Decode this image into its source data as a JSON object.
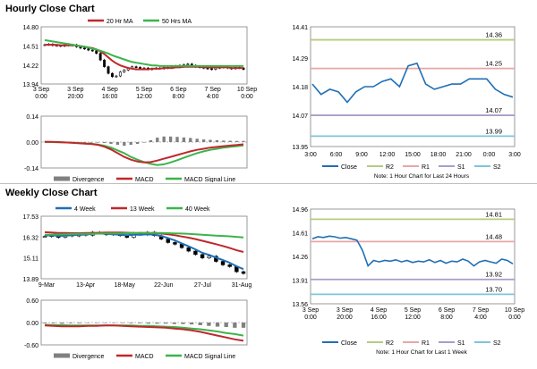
{
  "sections": {
    "hourly_title": "Hourly Close Chart",
    "weekly_title": "Weekly Close Chart"
  },
  "colors": {
    "ma_short": "#c0282c",
    "ma_long": "#3cb44b",
    "line_blue": "#1f6fb5",
    "macd": "#c0282c",
    "signal": "#3cb44b",
    "divergence": "#808080",
    "r2": "#b5cc7e",
    "r1": "#e8a6a6",
    "s1": "#a99cc8",
    "s2": "#7fc4dc",
    "candle": "#000000"
  },
  "chart_data": [
    {
      "id": "hourly-price",
      "type": "candlestick",
      "title": "Hourly Close Chart",
      "legend": [
        "20 Hr MA",
        "50 Hrs MA"
      ],
      "yticks": [
        "14.80",
        "14.51",
        "14.22",
        "13.94"
      ],
      "ylim": [
        13.94,
        14.8
      ],
      "x_labels": [
        [
          "3 Sep",
          "0:00"
        ],
        [
          "3 Sep",
          "20:00"
        ],
        [
          "4 Sep",
          "16:00"
        ],
        [
          "5 Sep",
          "12:00"
        ],
        [
          "6 Sep",
          "8:00"
        ],
        [
          "7 Sep",
          "4:00"
        ],
        [
          "10 Sep",
          "0:00"
        ]
      ],
      "close": [
        14.53,
        14.54,
        14.52,
        14.52,
        14.51,
        14.53,
        14.52,
        14.53,
        14.5,
        14.48,
        14.47,
        14.45,
        14.44,
        14.4,
        14.3,
        14.2,
        14.1,
        14.05,
        14.06,
        14.12,
        14.15,
        14.18,
        14.2,
        14.19,
        14.17,
        14.18,
        14.16,
        14.17,
        14.18,
        14.17,
        14.19,
        14.18,
        14.2,
        14.21,
        14.22,
        14.23,
        14.24,
        14.22,
        14.2,
        14.19,
        14.18,
        14.17,
        14.16,
        14.18,
        14.19,
        14.2,
        14.18,
        14.17,
        14.19,
        14.18,
        14.16
      ],
      "ma_short": [
        14.53,
        14.53,
        14.53,
        14.53,
        14.52,
        14.52,
        14.52,
        14.52,
        14.52,
        14.51,
        14.5,
        14.49,
        14.48,
        14.46,
        14.43,
        14.39,
        14.34,
        14.29,
        14.25,
        14.22,
        14.2,
        14.18,
        14.17,
        14.16,
        14.16,
        14.16,
        14.16,
        14.17,
        14.17,
        14.17,
        14.18,
        14.18,
        14.18,
        14.19,
        14.19,
        14.2,
        14.2,
        14.2,
        14.2,
        14.2,
        14.19,
        14.19,
        14.19,
        14.19,
        14.19,
        14.19,
        14.19,
        14.18,
        14.18,
        14.18,
        14.18
      ],
      "ma_long": [
        14.6,
        14.59,
        14.58,
        14.57,
        14.56,
        14.55,
        14.54,
        14.53,
        14.52,
        14.51,
        14.5,
        14.49,
        14.47,
        14.46,
        14.44,
        14.42,
        14.4,
        14.37,
        14.35,
        14.33,
        14.31,
        14.29,
        14.27,
        14.26,
        14.25,
        14.24,
        14.23,
        14.22,
        14.22,
        14.21,
        14.21,
        14.21,
        14.21,
        14.21,
        14.21,
        14.21,
        14.21,
        14.21,
        14.21,
        14.21,
        14.21,
        14.21,
        14.21,
        14.21,
        14.21,
        14.21,
        14.21,
        14.21,
        14.21,
        14.21,
        14.21
      ]
    },
    {
      "id": "hourly-macd",
      "type": "macd",
      "yticks": [
        "0.14",
        "0.00",
        "-0.14"
      ],
      "ylim": [
        -0.14,
        0.14
      ],
      "legend": [
        "Divergence",
        "MACD",
        "MACD Signal Line"
      ],
      "macd": [
        0.002,
        0.001,
        0.0,
        -0.002,
        -0.004,
        -0.006,
        -0.008,
        -0.01,
        -0.015,
        -0.025,
        -0.04,
        -0.06,
        -0.08,
        -0.095,
        -0.105,
        -0.11,
        -0.108,
        -0.1,
        -0.09,
        -0.08,
        -0.07,
        -0.06,
        -0.05,
        -0.042,
        -0.036,
        -0.03,
        -0.026,
        -0.022,
        -0.019,
        -0.016,
        -0.012
      ],
      "signal": [
        0.0,
        0.0,
        -0.001,
        -0.002,
        -0.003,
        -0.005,
        -0.007,
        -0.009,
        -0.013,
        -0.02,
        -0.03,
        -0.045,
        -0.06,
        -0.08,
        -0.095,
        -0.108,
        -0.118,
        -0.124,
        -0.12,
        -0.11,
        -0.098,
        -0.085,
        -0.072,
        -0.06,
        -0.05,
        -0.042,
        -0.036,
        -0.03,
        -0.026,
        -0.022,
        -0.018
      ],
      "divergence": [
        0.002,
        0.001,
        0.001,
        0.0,
        -0.001,
        -0.001,
        -0.001,
        -0.001,
        -0.002,
        -0.005,
        -0.01,
        -0.015,
        -0.02,
        -0.015,
        -0.01,
        -0.002,
        0.01,
        0.024,
        0.03,
        0.03,
        0.028,
        0.025,
        0.022,
        0.018,
        0.014,
        0.012,
        0.01,
        0.008,
        0.007,
        0.006,
        0.006
      ]
    },
    {
      "id": "hourly-pivot",
      "type": "line",
      "yticks": [
        "14.41",
        "14.29",
        "14.18",
        "14.07",
        "13.95"
      ],
      "ylim": [
        13.95,
        14.41
      ],
      "xticks": [
        "3:00",
        "6:00",
        "9:00",
        "12:00",
        "15:00",
        "18:00",
        "21:00",
        "0:00",
        "3:00"
      ],
      "close": [
        14.19,
        14.15,
        14.17,
        14.16,
        14.12,
        14.16,
        14.18,
        14.18,
        14.2,
        14.21,
        14.18,
        14.26,
        14.27,
        14.19,
        14.17,
        14.18,
        14.19,
        14.19,
        14.21,
        14.21,
        14.21,
        14.17,
        14.15,
        14.14
      ],
      "levels": {
        "R2": 14.36,
        "R1": 14.25,
        "S1": 14.07,
        "S2": 13.99
      },
      "level_labels": {
        "R2": "14.36",
        "R1": "14.25",
        "S1": "14.07",
        "S2": "13.99"
      },
      "legend": [
        "Close",
        "R2",
        "R1",
        "S1",
        "S2"
      ],
      "note": "Note: 1 Hour Chart for Last 24 Hours"
    },
    {
      "id": "weekly-price",
      "type": "candlestick",
      "title": "Weekly Close Chart",
      "legend": [
        "4 Week",
        "13 Week",
        "40 Week"
      ],
      "yticks": [
        "17.53",
        "16.32",
        "15.11",
        "13.89"
      ],
      "ylim": [
        13.89,
        17.53
      ],
      "xticks": [
        "9-Mar",
        "13-Apr",
        "18-May",
        "22-Jun",
        "27-Jul",
        "31-Aug"
      ],
      "close": [
        16.35,
        16.4,
        16.3,
        16.45,
        16.38,
        16.5,
        16.42,
        16.6,
        16.55,
        16.45,
        16.5,
        16.4,
        16.3,
        16.55,
        16.45,
        16.6,
        16.4,
        16.2,
        16.0,
        15.9,
        15.7,
        15.5,
        15.3,
        15.1,
        15.2,
        14.9,
        14.7,
        14.6,
        14.3,
        14.2
      ],
      "ma_4": [
        16.4,
        16.42,
        16.38,
        16.4,
        16.42,
        16.45,
        16.46,
        16.5,
        16.52,
        16.5,
        16.48,
        16.45,
        16.42,
        16.45,
        16.45,
        16.48,
        16.45,
        16.38,
        16.26,
        16.12,
        15.95,
        15.78,
        15.6,
        15.4,
        15.28,
        15.12,
        14.98,
        14.82,
        14.62,
        14.45
      ],
      "ma_13": [
        16.6,
        16.58,
        16.56,
        16.55,
        16.54,
        16.54,
        16.55,
        16.56,
        16.57,
        16.58,
        16.58,
        16.58,
        16.57,
        16.56,
        16.55,
        16.55,
        16.54,
        16.52,
        16.48,
        16.42,
        16.35,
        16.28,
        16.2,
        16.1,
        16.0,
        15.9,
        15.8,
        15.68,
        15.55,
        15.45
      ],
      "ma_40": [
        16.45,
        16.46,
        16.47,
        16.48,
        16.49,
        16.5,
        16.5,
        16.51,
        16.52,
        16.52,
        16.53,
        16.53,
        16.54,
        16.54,
        16.55,
        16.55,
        16.55,
        16.55,
        16.54,
        16.53,
        16.52,
        16.5,
        16.48,
        16.45,
        16.42,
        16.4,
        16.38,
        16.36,
        16.33,
        16.3
      ]
    },
    {
      "id": "weekly-macd",
      "type": "macd",
      "yticks": [
        "0.60",
        "0.00",
        "-0.60"
      ],
      "ylim": [
        -0.6,
        0.6
      ],
      "legend": [
        "Divergence",
        "MACD",
        "MACD Signal Line"
      ],
      "macd": [
        -0.08,
        -0.09,
        -0.1,
        -0.1,
        -0.1,
        -0.09,
        -0.09,
        -0.08,
        -0.08,
        -0.09,
        -0.1,
        -0.11,
        -0.12,
        -0.13,
        -0.14,
        -0.16,
        -0.18,
        -0.21,
        -0.25,
        -0.3,
        -0.35,
        -0.4,
        -0.45,
        -0.49
      ],
      "signal": [
        -0.06,
        -0.07,
        -0.07,
        -0.08,
        -0.08,
        -0.08,
        -0.08,
        -0.08,
        -0.08,
        -0.08,
        -0.08,
        -0.09,
        -0.09,
        -0.1,
        -0.11,
        -0.12,
        -0.14,
        -0.16,
        -0.18,
        -0.21,
        -0.24,
        -0.28,
        -0.31,
        -0.35
      ],
      "divergence": [
        -0.02,
        -0.02,
        -0.03,
        -0.02,
        -0.02,
        -0.01,
        -0.01,
        0.0,
        0.0,
        -0.01,
        -0.02,
        -0.02,
        -0.03,
        -0.03,
        -0.03,
        -0.04,
        -0.04,
        -0.05,
        -0.07,
        -0.09,
        -0.11,
        -0.12,
        -0.14,
        -0.14
      ]
    },
    {
      "id": "weekly-pivot",
      "type": "line",
      "yticks": [
        "14.96",
        "14.61",
        "14.26",
        "13.91",
        "13.56"
      ],
      "ylim": [
        13.56,
        14.96
      ],
      "x_labels": [
        [
          "3 Sep",
          "0:00"
        ],
        [
          "3 Sep",
          "20:00"
        ],
        [
          "4 Sep",
          "16:00"
        ],
        [
          "5 Sep",
          "12:00"
        ],
        [
          "6 Sep",
          "8:00"
        ],
        [
          "7 Sep",
          "4:00"
        ],
        [
          "10 Sep",
          "0:00"
        ]
      ],
      "close": [
        14.52,
        14.55,
        14.54,
        14.56,
        14.55,
        14.53,
        14.54,
        14.52,
        14.5,
        14.35,
        14.12,
        14.2,
        14.18,
        14.2,
        14.19,
        14.21,
        14.18,
        14.2,
        14.17,
        14.19,
        14.18,
        14.21,
        14.17,
        14.2,
        14.16,
        14.19,
        14.18,
        14.22,
        14.19,
        14.12,
        14.18,
        14.2,
        14.18,
        14.16,
        14.22,
        14.2,
        14.15
      ],
      "levels": {
        "R2": 14.81,
        "R1": 14.48,
        "S1": 13.92,
        "S2": 13.7
      },
      "level_labels": {
        "R2": "14.81",
        "R1": "14.48",
        "S1": "13.92",
        "S2": "13.70"
      },
      "legend": [
        "Close",
        "R2",
        "R1",
        "S1",
        "S2"
      ],
      "note": "Note: 1 Hour Chart for Last 1 Week"
    }
  ]
}
